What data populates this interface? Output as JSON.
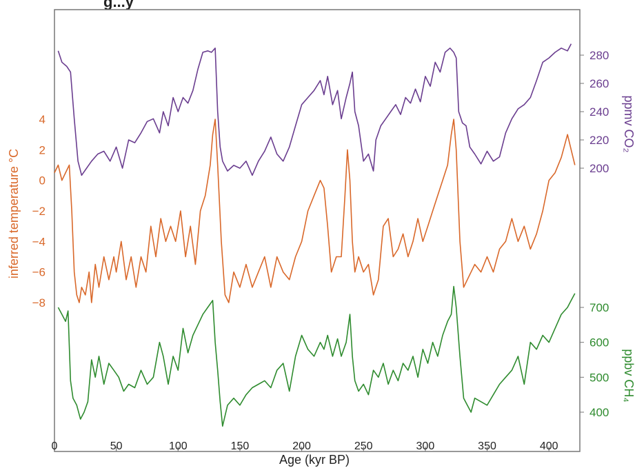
{
  "chart_data": {
    "type": "line",
    "title_partial": "g...y",
    "xlabel": "Age (kyr BP)",
    "xlim": [
      0,
      425
    ],
    "xticks": [
      0,
      50,
      100,
      150,
      200,
      250,
      300,
      350,
      400
    ],
    "axes": {
      "temperature": {
        "label": "inferred temperature °C",
        "ticks": [
          4,
          2,
          0,
          -2,
          -4,
          -6,
          -8
        ],
        "color": "#d9682a"
      },
      "co2": {
        "label": "ppmv CO₂",
        "ticks": [
          280,
          260,
          240,
          220,
          200
        ],
        "color": "#6a3d8f"
      },
      "ch4": {
        "label": "ppbv CH₄",
        "ticks": [
          700,
          600,
          500,
          400
        ],
        "color": "#2e8b2e"
      }
    },
    "series": [
      {
        "axis": "co2",
        "x": [
          3,
          6,
          10,
          13,
          16,
          19,
          22,
          26,
          30,
          35,
          40,
          45,
          50,
          55,
          60,
          65,
          70,
          75,
          80,
          85,
          88,
          92,
          96,
          100,
          104,
          108,
          112,
          116,
          120,
          124,
          127,
          130,
          132,
          134,
          136,
          140,
          145,
          150,
          155,
          160,
          165,
          170,
          175,
          180,
          185,
          190,
          195,
          200,
          205,
          210,
          215,
          218,
          221,
          225,
          229,
          232,
          236,
          239,
          241,
          243,
          246,
          250,
          254,
          258,
          260,
          264,
          268,
          272,
          276,
          280,
          284,
          288,
          292,
          296,
          300,
          304,
          308,
          312,
          316,
          320,
          323,
          325,
          327,
          330,
          333,
          336,
          340,
          345,
          350,
          355,
          360,
          365,
          370,
          375,
          380,
          385,
          390,
          395,
          400,
          405,
          410,
          415,
          418
        ],
        "y": [
          283,
          275,
          272,
          268,
          235,
          205,
          195,
          200,
          205,
          210,
          212,
          205,
          215,
          200,
          220,
          218,
          225,
          233,
          235,
          225,
          240,
          230,
          250,
          240,
          250,
          246,
          255,
          270,
          282,
          283,
          282,
          285,
          240,
          215,
          205,
          198,
          202,
          200,
          205,
          195,
          205,
          212,
          222,
          210,
          205,
          215,
          230,
          245,
          250,
          255,
          262,
          252,
          265,
          245,
          255,
          235,
          250,
          260,
          268,
          240,
          230,
          205,
          210,
          198,
          220,
          230,
          235,
          240,
          245,
          238,
          250,
          246,
          256,
          247,
          265,
          258,
          275,
          268,
          282,
          285,
          282,
          278,
          240,
          232,
          230,
          215,
          210,
          203,
          212,
          205,
          208,
          225,
          235,
          242,
          245,
          250,
          262,
          275,
          278,
          282,
          285,
          283,
          288
        ]
      },
      {
        "axis": "temperature",
        "x": [
          0,
          3,
          6,
          9,
          12,
          14,
          16,
          18,
          20,
          22,
          25,
          28,
          30,
          33,
          36,
          40,
          44,
          48,
          50,
          54,
          58,
          62,
          66,
          70,
          74,
          78,
          82,
          86,
          90,
          94,
          98,
          102,
          106,
          110,
          114,
          118,
          122,
          126,
          128,
          130,
          132,
          135,
          138,
          141,
          145,
          150,
          155,
          160,
          165,
          170,
          175,
          180,
          185,
          190,
          195,
          200,
          205,
          210,
          215,
          218,
          221,
          224,
          228,
          232,
          235,
          237,
          239,
          241,
          243,
          246,
          250,
          254,
          258,
          262,
          266,
          270,
          274,
          278,
          282,
          286,
          290,
          294,
          298,
          302,
          306,
          310,
          314,
          318,
          321,
          323,
          325,
          328,
          331,
          334,
          337,
          340,
          345,
          350,
          355,
          360,
          365,
          370,
          375,
          380,
          385,
          390,
          395,
          400,
          405,
          410,
          415,
          418,
          421
        ],
        "y": [
          0.5,
          1,
          0,
          0.5,
          1,
          -2,
          -6,
          -7.5,
          -8,
          -7,
          -7.5,
          -6,
          -8,
          -5.5,
          -7,
          -5,
          -6.5,
          -5,
          -6,
          -4,
          -6.5,
          -5,
          -7,
          -5,
          -6,
          -3,
          -5,
          -2.5,
          -4,
          -3,
          -4,
          -2,
          -5,
          -3,
          -5.5,
          -2,
          -1,
          1,
          3,
          4,
          1,
          -4,
          -7.5,
          -8,
          -6,
          -7,
          -5.5,
          -7,
          -6,
          -5,
          -7,
          -5,
          -6,
          -6.5,
          -5,
          -4,
          -2,
          -1,
          0,
          -0.5,
          -3,
          -6,
          -5,
          -5,
          -1,
          2,
          0,
          -4,
          -6,
          -5,
          -6,
          -5.5,
          -7.5,
          -6.5,
          -3,
          -2.5,
          -5,
          -4.5,
          -3.5,
          -5,
          -4,
          -2.5,
          -4,
          -3,
          -2,
          -1,
          0,
          1,
          3,
          4,
          2,
          -4,
          -7,
          -6.5,
          -6,
          -5.5,
          -6,
          -5,
          -6,
          -4.5,
          -4,
          -2.5,
          -4,
          -3,
          -4.5,
          -3.5,
          -2,
          0,
          0.5,
          1.5,
          3,
          2,
          1
        ]
      },
      {
        "axis": "ch4",
        "x": [
          3,
          6,
          9,
          11,
          13,
          15,
          18,
          21,
          24,
          27,
          30,
          33,
          36,
          40,
          44,
          48,
          52,
          56,
          60,
          65,
          70,
          75,
          80,
          85,
          88,
          90,
          92,
          96,
          100,
          104,
          108,
          112,
          116,
          120,
          124,
          128,
          130,
          132,
          134,
          136,
          140,
          145,
          150,
          155,
          160,
          165,
          170,
          175,
          180,
          185,
          190,
          195,
          200,
          205,
          210,
          215,
          218,
          221,
          225,
          229,
          232,
          236,
          239,
          241,
          243,
          246,
          250,
          254,
          258,
          262,
          266,
          270,
          274,
          278,
          282,
          286,
          290,
          294,
          298,
          302,
          306,
          310,
          314,
          318,
          321,
          323,
          325,
          328,
          331,
          334,
          337,
          340,
          345,
          350,
          355,
          360,
          365,
          370,
          375,
          380,
          385,
          390,
          395,
          400,
          405,
          410,
          415,
          418,
          421
        ],
        "y": [
          700,
          680,
          660,
          690,
          490,
          440,
          420,
          380,
          400,
          430,
          550,
          500,
          560,
          480,
          540,
          520,
          500,
          460,
          480,
          470,
          520,
          480,
          500,
          600,
          560,
          520,
          480,
          560,
          520,
          640,
          570,
          620,
          650,
          680,
          700,
          720,
          600,
          520,
          430,
          360,
          420,
          440,
          420,
          450,
          470,
          480,
          490,
          470,
          520,
          540,
          460,
          560,
          620,
          580,
          560,
          600,
          580,
          620,
          560,
          610,
          560,
          600,
          680,
          560,
          490,
          460,
          480,
          450,
          520,
          500,
          540,
          480,
          520,
          490,
          540,
          520,
          560,
          500,
          580,
          540,
          600,
          560,
          620,
          660,
          680,
          760,
          700,
          560,
          440,
          420,
          400,
          440,
          430,
          420,
          450,
          480,
          500,
          520,
          560,
          480,
          600,
          580,
          620,
          600,
          640,
          680,
          700,
          720,
          740
        ]
      }
    ]
  }
}
